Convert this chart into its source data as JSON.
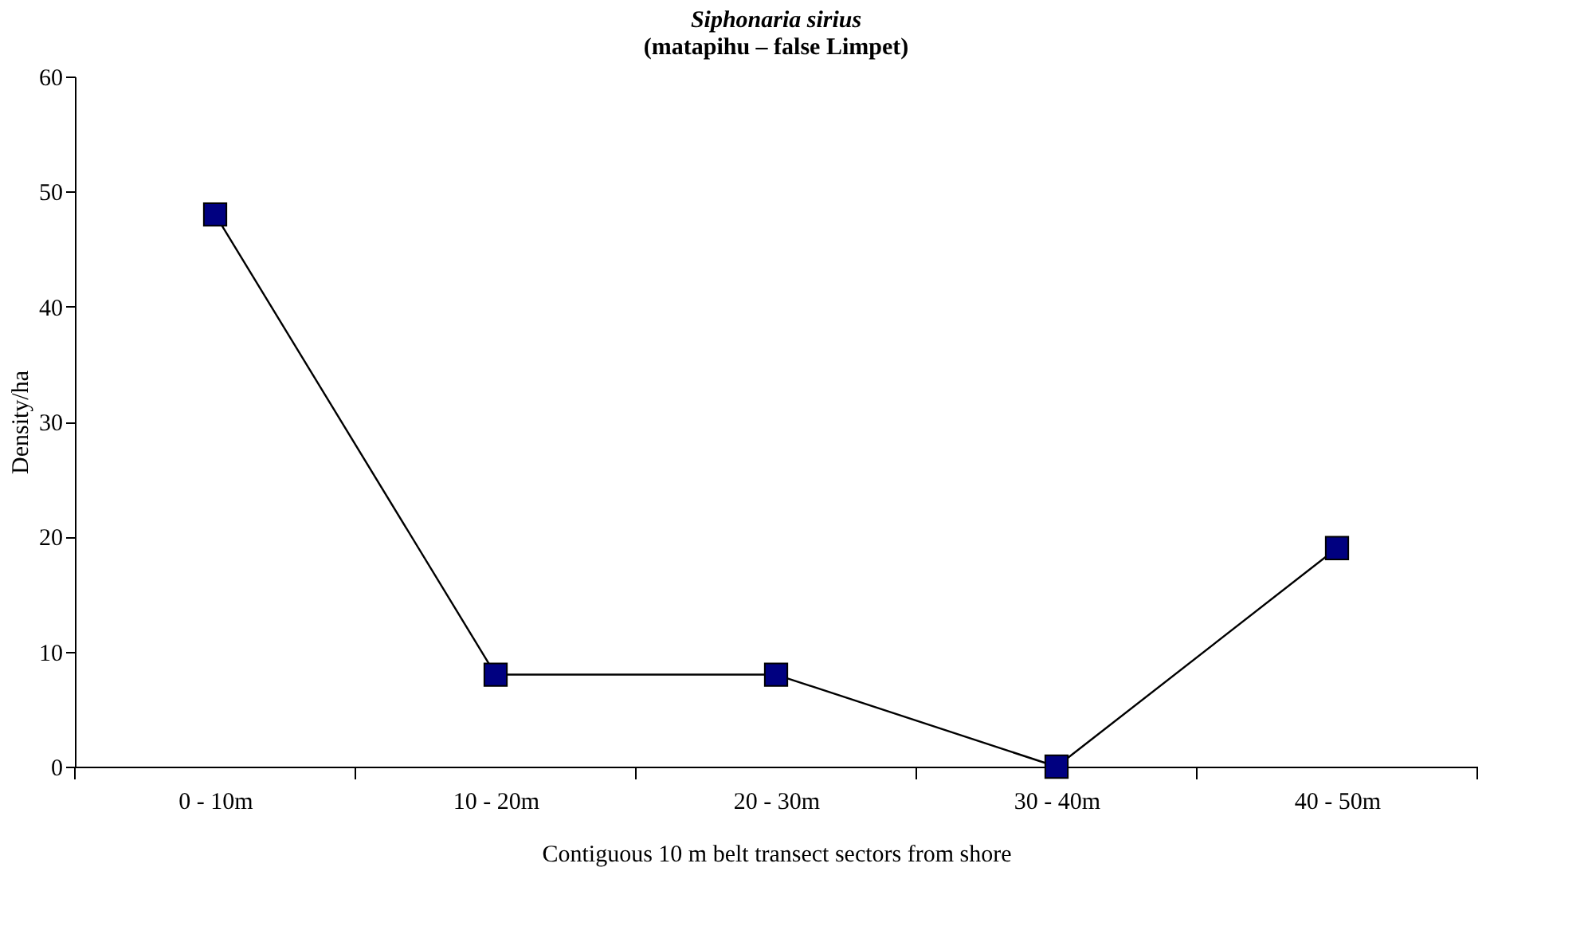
{
  "chart_data": {
    "type": "line",
    "title": "Siphonaria sirius",
    "subtitle": "(matapihu – false Limpet)",
    "xlabel": "Contiguous 10 m belt transect sectors from shore",
    "ylabel": "Density/ha",
    "categories": [
      "0 - 10m",
      "10 - 20m",
      "20 - 30m",
      "30 - 40m",
      "40 - 50m"
    ],
    "series": [
      {
        "color": "#000080",
        "values": [
          48,
          8,
          8,
          0,
          19
        ]
      }
    ],
    "ylim": [
      0,
      60
    ],
    "yticks": [
      0,
      10,
      20,
      30,
      40,
      50,
      60
    ],
    "marker": "square",
    "line_style": "solid",
    "grid": false
  }
}
